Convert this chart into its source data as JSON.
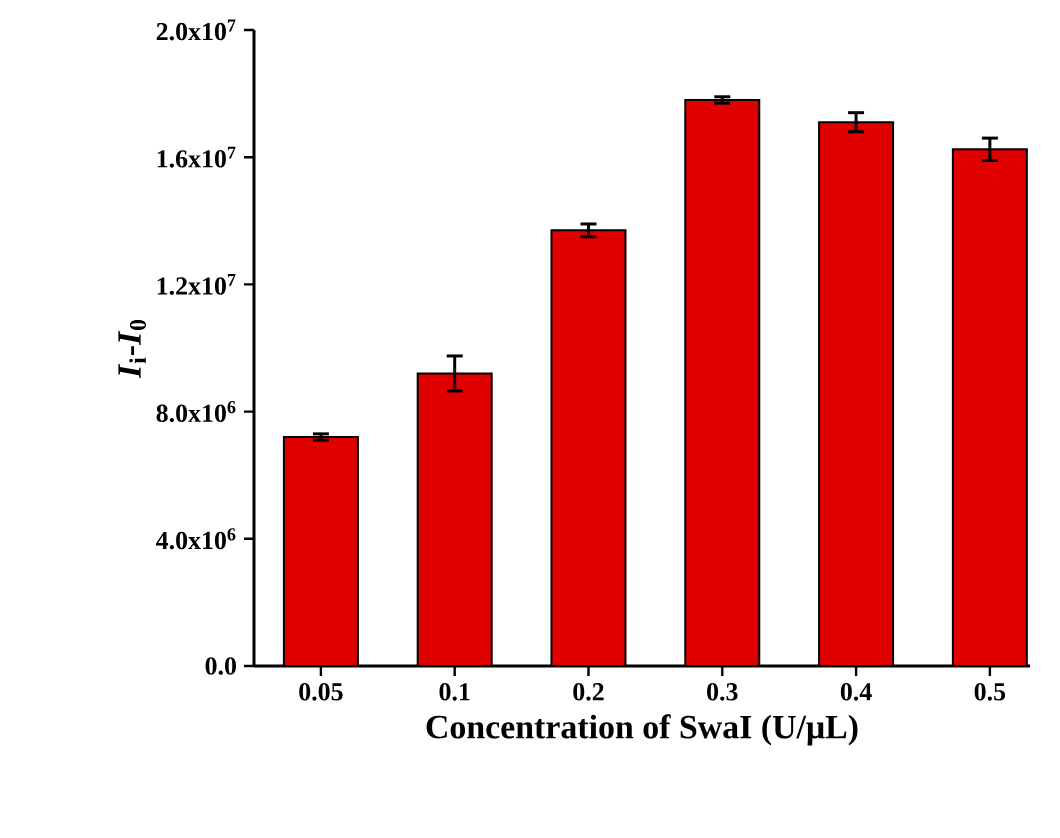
{
  "chart_data": {
    "type": "bar",
    "xlabel": "Concentration of SwaI (U/μL)",
    "ylabel": "*I*$_{i}$-*I*$_{0}$",
    "categories": [
      "0.05",
      "0.1",
      "0.2",
      "0.3",
      "0.4",
      "0.5"
    ],
    "values": [
      7200000,
      9200000,
      13700000,
      17800000,
      17100000,
      16250000
    ],
    "errors": [
      100000,
      550000,
      200000,
      100000,
      300000,
      350000
    ],
    "color": "#e00000",
    "ylim": [
      0,
      20000000
    ],
    "yticks": [
      {
        "value": 0,
        "label": "0.0"
      },
      {
        "value": 4000000,
        "label": "4.0x10$^{6}$"
      },
      {
        "value": 8000000,
        "label": "8.0x10$^{6}$"
      },
      {
        "value": 12000000,
        "label": "1.2x10$^{7}$"
      },
      {
        "value": 16000000,
        "label": "1.6x10$^{7}$"
      },
      {
        "value": 20000000,
        "label": "2.0x10$^{7}$"
      }
    ]
  }
}
